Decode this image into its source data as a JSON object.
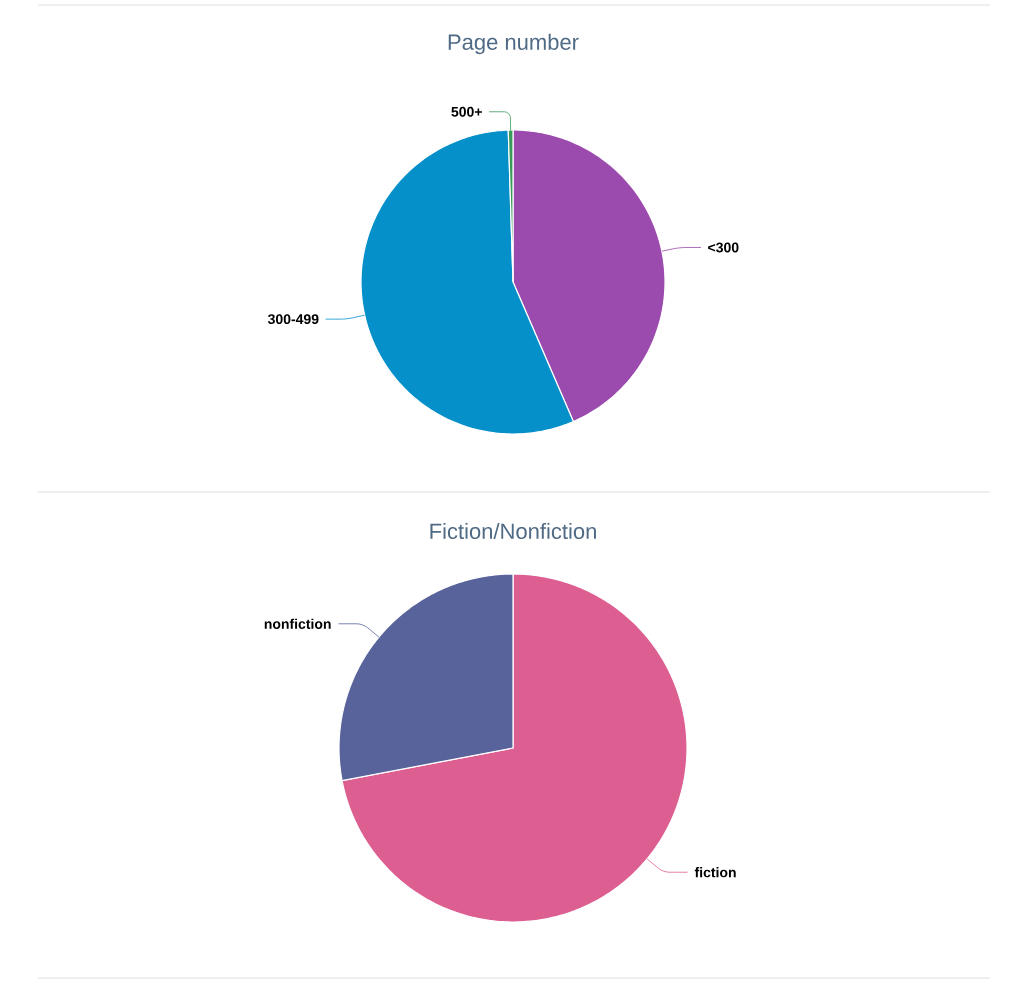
{
  "chart_data": [
    {
      "type": "pie",
      "title": "Page number",
      "categories": [
        "<300",
        "300-499",
        "500+"
      ],
      "values": [
        43.5,
        56,
        0.5
      ],
      "colors": [
        "#9b4aad",
        "#0690c9",
        "#3a9a5a"
      ]
    },
    {
      "type": "pie",
      "title": "Fiction/Nonfiction",
      "categories": [
        "fiction",
        "nonfiction"
      ],
      "values": [
        72,
        28
      ],
      "colors": [
        "#dd5e91",
        "#58639b"
      ]
    }
  ]
}
